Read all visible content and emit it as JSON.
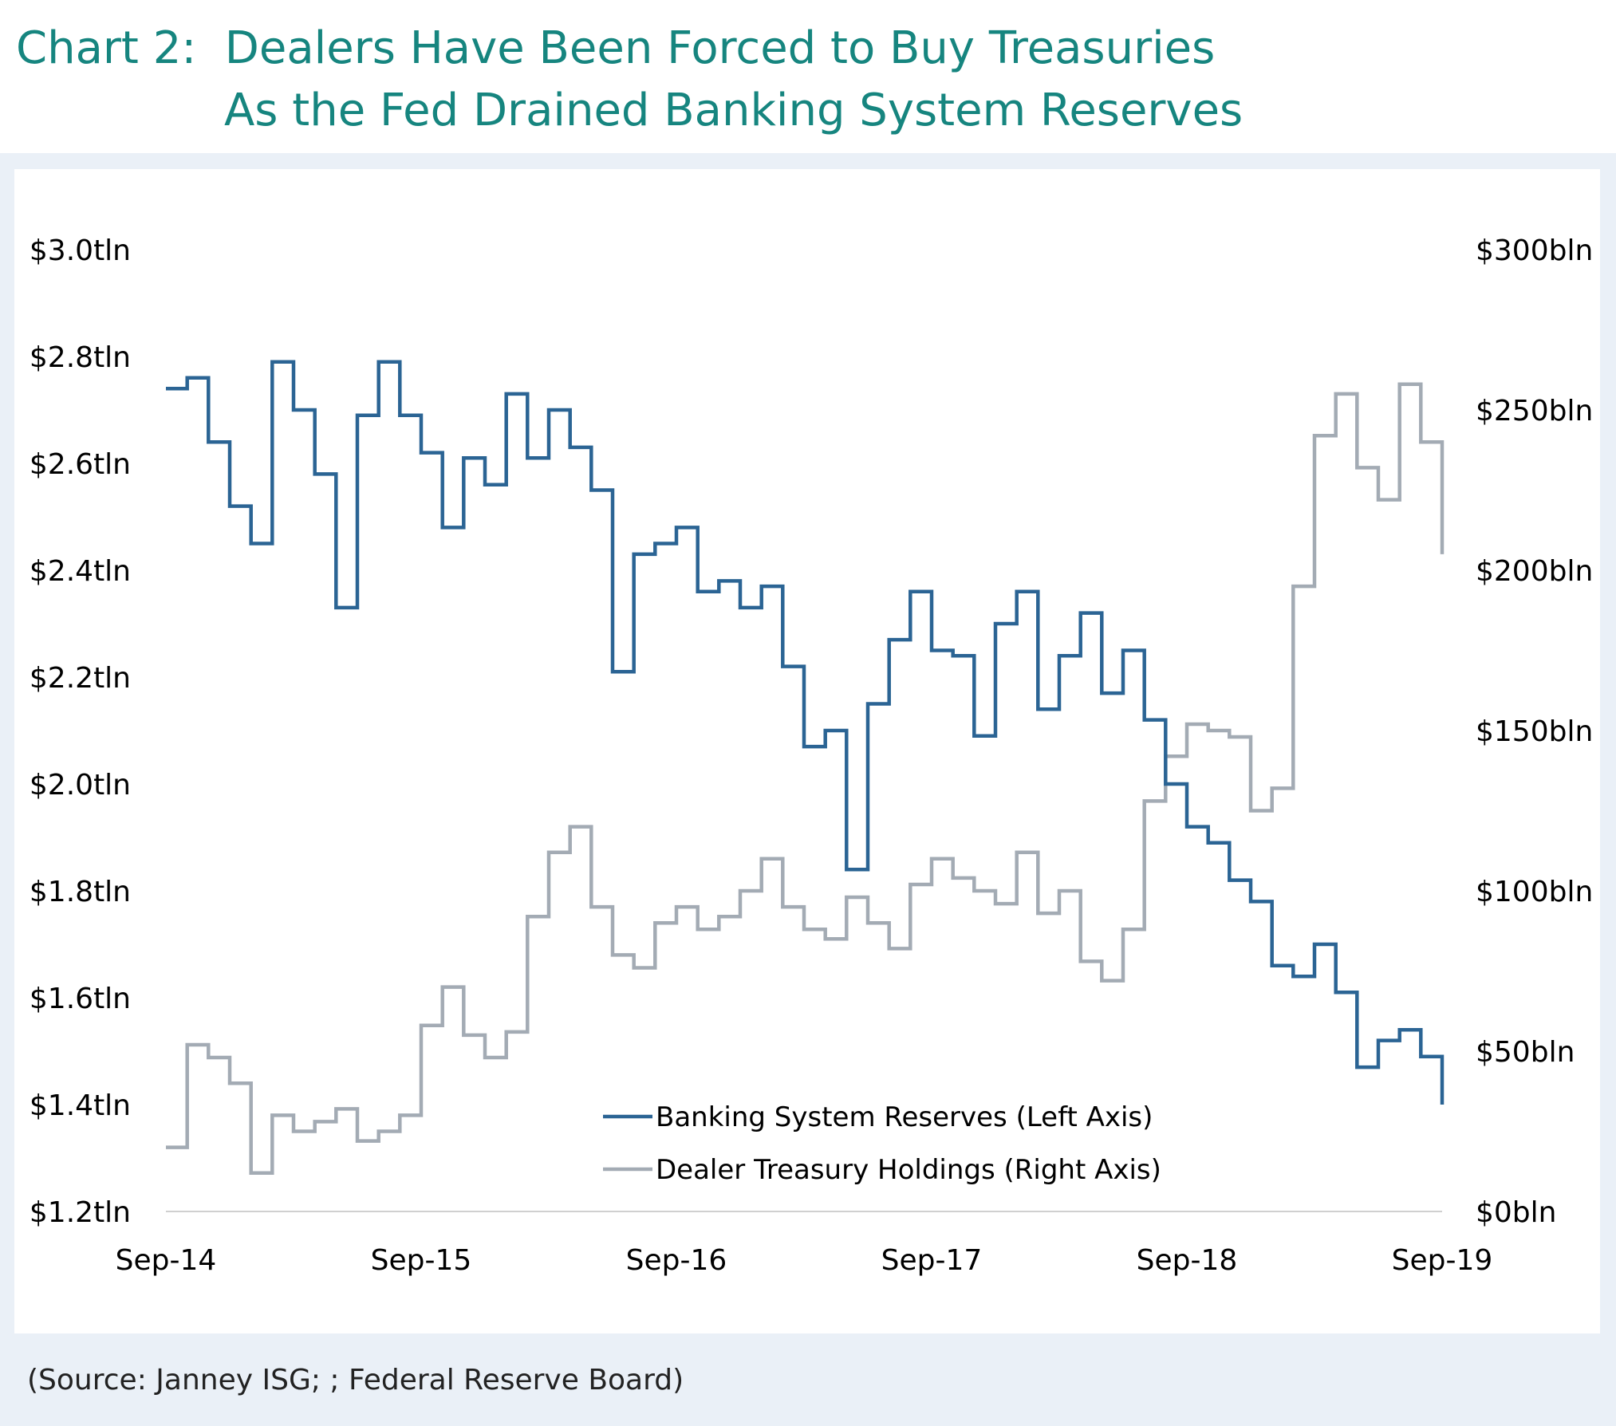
{
  "title": {
    "line1": "Chart 2:  Dealers Have Been Forced to Buy Treasuries",
    "line2": "As the Fed Drained Banking System Reserves"
  },
  "source": "(Source: Janney ISG; ; Federal Reserve Board)",
  "colors": {
    "title": "#16857f",
    "reserves": "#2b6494",
    "treasury": "#a3abb4",
    "axis": "#d0d0d0",
    "panel": "#eaf0f7"
  },
  "chart_data": {
    "type": "line",
    "title": "Dealers Have Been Forced to Buy Treasuries As the Fed Drained Banking System Reserves",
    "x_tick_labels": [
      "Sep-14",
      "Sep-15",
      "Sep-16",
      "Sep-17",
      "Sep-18",
      "Sep-19"
    ],
    "x": [
      "Sep-14",
      "Oct-14",
      "Nov-14",
      "Dec-14",
      "Jan-15",
      "Feb-15",
      "Mar-15",
      "Apr-15",
      "May-15",
      "Jun-15",
      "Jul-15",
      "Aug-15",
      "Sep-15",
      "Oct-15",
      "Nov-15",
      "Dec-15",
      "Jan-16",
      "Feb-16",
      "Mar-16",
      "Apr-16",
      "May-16",
      "Jun-16",
      "Jul-16",
      "Aug-16",
      "Sep-16",
      "Oct-16",
      "Nov-16",
      "Dec-16",
      "Jan-17",
      "Feb-17",
      "Mar-17",
      "Apr-17",
      "May-17",
      "Jun-17",
      "Jul-17",
      "Aug-17",
      "Sep-17",
      "Oct-17",
      "Nov-17",
      "Dec-17",
      "Jan-18",
      "Feb-18",
      "Mar-18",
      "Apr-18",
      "May-18",
      "Jun-18",
      "Jul-18",
      "Aug-18",
      "Sep-18",
      "Oct-18",
      "Nov-18",
      "Dec-18",
      "Jan-19",
      "Feb-19",
      "Mar-19",
      "Apr-19",
      "May-19",
      "Jun-19",
      "Jul-19",
      "Aug-19",
      "Sep-19"
    ],
    "left_axis": {
      "label": "Banking System Reserves",
      "ylim": [
        1.2,
        3.0
      ],
      "tick_labels": [
        "$3.0tln",
        "$2.8tln",
        "$2.6tln",
        "$2.4tln",
        "$2.2tln",
        "$2.0tln",
        "$1.8tln",
        "$1.6tln",
        "$1.4tln",
        "$1.2tln"
      ]
    },
    "right_axis": {
      "label": "Dealer Treasury Holdings",
      "ylim": [
        0,
        300
      ],
      "tick_labels": [
        "$300bln",
        "$250bln",
        "$200bln",
        "$150bln",
        "$100bln",
        "$50bln",
        "$0bln"
      ]
    },
    "legend": [
      "Banking System Reserves (Left Axis)",
      "Dealer Treasury Holdings (Right Axis)"
    ],
    "legend_position": "bottom-center",
    "series": [
      {
        "name": "Banking System Reserves (Left Axis)",
        "axis": "left",
        "unit": "$tln",
        "values": [
          2.74,
          2.76,
          2.64,
          2.52,
          2.45,
          2.79,
          2.7,
          2.58,
          2.33,
          2.69,
          2.79,
          2.69,
          2.62,
          2.48,
          2.61,
          2.56,
          2.73,
          2.61,
          2.7,
          2.63,
          2.55,
          2.21,
          2.43,
          2.45,
          2.48,
          2.36,
          2.38,
          2.33,
          2.37,
          2.22,
          2.07,
          2.1,
          1.84,
          2.15,
          2.27,
          2.36,
          2.25,
          2.24,
          2.09,
          2.3,
          2.36,
          2.14,
          2.24,
          2.32,
          2.17,
          2.25,
          2.12,
          2.0,
          1.92,
          1.89,
          1.82,
          1.78,
          1.66,
          1.64,
          1.7,
          1.61,
          1.47,
          1.52,
          1.54,
          1.49,
          1.4
        ]
      },
      {
        "name": "Dealer Treasury Holdings (Right Axis)",
        "axis": "right",
        "unit": "$bln",
        "values": [
          20,
          52,
          48,
          40,
          12,
          30,
          25,
          28,
          32,
          22,
          25,
          30,
          58,
          70,
          55,
          48,
          56,
          92,
          112,
          120,
          95,
          80,
          76,
          90,
          95,
          88,
          92,
          100,
          110,
          95,
          88,
          85,
          98,
          90,
          82,
          102,
          110,
          104,
          100,
          96,
          112,
          93,
          100,
          78,
          72,
          88,
          128,
          142,
          152,
          150,
          148,
          125,
          132,
          195,
          242,
          255,
          232,
          222,
          258,
          240,
          205
        ]
      }
    ]
  }
}
